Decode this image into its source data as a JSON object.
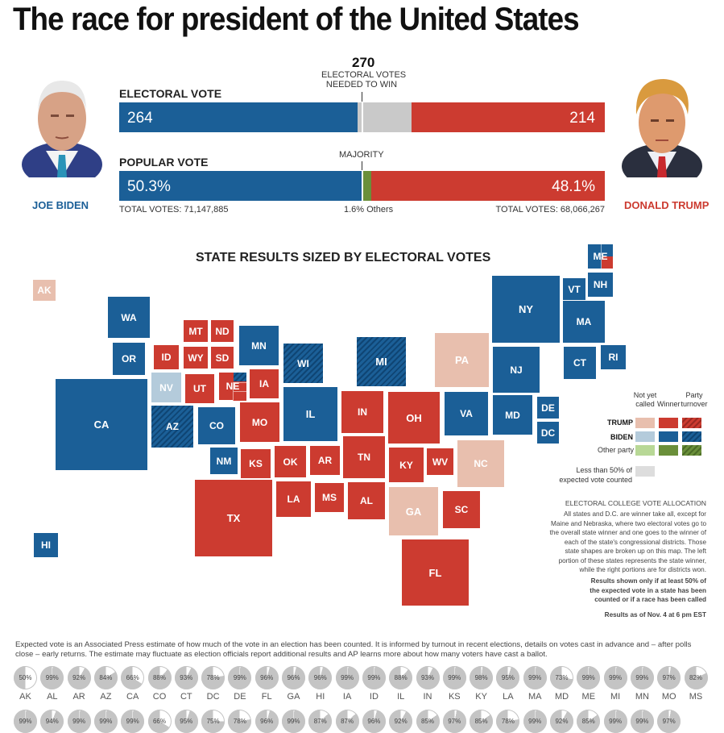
{
  "title": "The race for president of the United States",
  "colors": {
    "biden": "#1b5f97",
    "trump": "#cc3b30",
    "biden_light": "#b4cbdb",
    "trump_light": "#e8bfae",
    "other": "#6a8f3a",
    "other_light": "#b8d896",
    "uncounted": "#dddddd",
    "undecided_bar": "#c9c9c9"
  },
  "candidates": {
    "biden": {
      "name": "JOE BIDEN",
      "portrait_icon": "biden-portrait"
    },
    "trump": {
      "name": "DONALD TRUMP",
      "portrait_icon": "trump-portrait"
    }
  },
  "electoral": {
    "label": "ELECTORAL VOTE",
    "biden": 264,
    "trump": 214,
    "total": 538,
    "threshold_value": "270",
    "threshold_line1": "ELECTORAL VOTES",
    "threshold_line2": "NEEDED TO WIN",
    "biden_text": "264",
    "trump_text": "214"
  },
  "popular": {
    "label": "POPULAR VOTE",
    "biden_pct": 50.3,
    "trump_pct": 48.1,
    "others_pct": 1.6,
    "biden_text": "50.3%",
    "trump_text": "48.1%",
    "majority_label": "MAJORITY",
    "others_text": "1.6% Others",
    "biden_total": "TOTAL VOTES: 71,147,885",
    "trump_total": "TOTAL VOTES: 68,066,267"
  },
  "map": {
    "title": "STATE RESULTS SIZED BY ELECTORAL VOTES",
    "states": [
      {
        "abbr": "AK",
        "status": "trump_light"
      },
      {
        "abbr": "WA",
        "status": "biden"
      },
      {
        "abbr": "OR",
        "status": "biden"
      },
      {
        "abbr": "CA",
        "status": "biden"
      },
      {
        "abbr": "HI",
        "status": "biden"
      },
      {
        "abbr": "MT",
        "status": "trump"
      },
      {
        "abbr": "ND",
        "status": "trump"
      },
      {
        "abbr": "ID",
        "status": "trump"
      },
      {
        "abbr": "WY",
        "status": "trump"
      },
      {
        "abbr": "SD",
        "status": "trump"
      },
      {
        "abbr": "NV",
        "status": "biden_light"
      },
      {
        "abbr": "UT",
        "status": "trump"
      },
      {
        "abbr": "NE",
        "status": "trump"
      },
      {
        "abbr": "AZ",
        "status": "biden_flip"
      },
      {
        "abbr": "CO",
        "status": "biden"
      },
      {
        "abbr": "NM",
        "status": "biden"
      },
      {
        "abbr": "MN",
        "status": "biden"
      },
      {
        "abbr": "IA",
        "status": "trump"
      },
      {
        "abbr": "MO",
        "status": "trump"
      },
      {
        "abbr": "KS",
        "status": "trump"
      },
      {
        "abbr": "OK",
        "status": "trump"
      },
      {
        "abbr": "AR",
        "status": "trump"
      },
      {
        "abbr": "TX",
        "status": "trump"
      },
      {
        "abbr": "LA",
        "status": "trump"
      },
      {
        "abbr": "MS",
        "status": "trump"
      },
      {
        "abbr": "WI",
        "status": "biden_flip"
      },
      {
        "abbr": "IL",
        "status": "biden"
      },
      {
        "abbr": "MI",
        "status": "biden_flip"
      },
      {
        "abbr": "IN",
        "status": "trump"
      },
      {
        "abbr": "OH",
        "status": "trump"
      },
      {
        "abbr": "TN",
        "status": "trump"
      },
      {
        "abbr": "KY",
        "status": "trump"
      },
      {
        "abbr": "WV",
        "status": "trump"
      },
      {
        "abbr": "AL",
        "status": "trump"
      },
      {
        "abbr": "GA",
        "status": "trump_light"
      },
      {
        "abbr": "FL",
        "status": "trump"
      },
      {
        "abbr": "SC",
        "status": "trump"
      },
      {
        "abbr": "NC",
        "status": "trump_light"
      },
      {
        "abbr": "VA",
        "status": "biden"
      },
      {
        "abbr": "PA",
        "status": "trump_light"
      },
      {
        "abbr": "NY",
        "status": "biden"
      },
      {
        "abbr": "NJ",
        "status": "biden"
      },
      {
        "abbr": "MD",
        "status": "biden"
      },
      {
        "abbr": "DE",
        "status": "biden"
      },
      {
        "abbr": "DC",
        "status": "biden"
      },
      {
        "abbr": "VT",
        "status": "biden"
      },
      {
        "abbr": "NH",
        "status": "biden"
      },
      {
        "abbr": "MA",
        "status": "biden"
      },
      {
        "abbr": "CT",
        "status": "biden"
      },
      {
        "abbr": "RI",
        "status": "biden"
      },
      {
        "abbr": "ME",
        "status": "biden"
      }
    ]
  },
  "legend": {
    "col_not_called": [
      "Not yet",
      "called"
    ],
    "col_winner": "Winner",
    "col_turnover": [
      "Party",
      "turnover"
    ],
    "row_trump": "TRUMP",
    "row_biden": "BIDEN",
    "row_other": "Other party",
    "uncounted": [
      "Less than 50% of",
      "expected vote counted"
    ]
  },
  "notes": {
    "alloc_title": "ELECTORAL COLLEGE VOTE ALLOCATION",
    "alloc_body": [
      "All states and D.C. are winner take all, except for",
      "Maine and Nebraska, where two electoral votes go to",
      "the overall state winner and one goes to the winner of",
      "each of the state's congressional districts. Those",
      "state shapes are broken up on this map. The left",
      "portion of these states represents the state winner,",
      "while the right portions are for districts won."
    ],
    "shown_only": [
      "Results shown only if at least 50% of",
      "the expected vote in a state has been",
      "counted or if a race has been called"
    ],
    "as_of": "Results as of Nov. 4 at 6 pm EST"
  },
  "footnote": "Expected vote is an Associated Press estimate of how much of the vote in an election has been counted. It is informed by turnout in recent elections, details on votes cast in advance and – after polls close – early returns. The estimate may fluctuate as election officials report additional results and AP learns more about how many voters have cast a ballot.",
  "expected_vote": {
    "row1": [
      {
        "state": "AK",
        "pct": 50
      },
      {
        "state": "AL",
        "pct": 99
      },
      {
        "state": "AR",
        "pct": 92
      },
      {
        "state": "AZ",
        "pct": 84
      },
      {
        "state": "CA",
        "pct": 66
      },
      {
        "state": "CO",
        "pct": 88
      },
      {
        "state": "CT",
        "pct": 93
      },
      {
        "state": "DC",
        "pct": 78
      },
      {
        "state": "DE",
        "pct": 99
      },
      {
        "state": "FL",
        "pct": 96
      },
      {
        "state": "GA",
        "pct": 96
      },
      {
        "state": "HI",
        "pct": 96
      },
      {
        "state": "IA",
        "pct": 99
      },
      {
        "state": "ID",
        "pct": 99
      },
      {
        "state": "IL",
        "pct": 88
      },
      {
        "state": "IN",
        "pct": 93
      },
      {
        "state": "KS",
        "pct": 99
      },
      {
        "state": "KY",
        "pct": 98
      },
      {
        "state": "LA",
        "pct": 95
      },
      {
        "state": "MA",
        "pct": 99
      },
      {
        "state": "MD",
        "pct": 73
      },
      {
        "state": "ME",
        "pct": 99
      },
      {
        "state": "MI",
        "pct": 99
      },
      {
        "state": "MN",
        "pct": 99
      },
      {
        "state": "MO",
        "pct": 97
      },
      {
        "state": "MS",
        "pct": 82
      }
    ],
    "row2": [
      99,
      94,
      99,
      99,
      99,
      66,
      95,
      75,
      78,
      96,
      99,
      87,
      87,
      96,
      92,
      85,
      97,
      85,
      78,
      99,
      92,
      85,
      99,
      99,
      97
    ]
  }
}
